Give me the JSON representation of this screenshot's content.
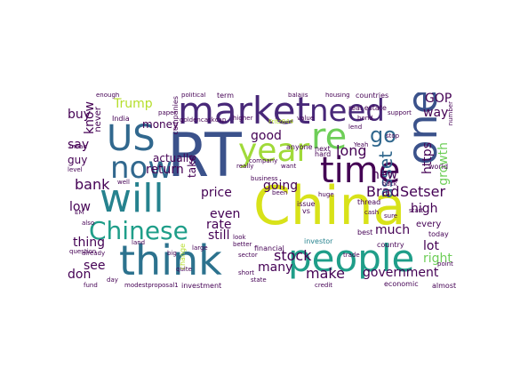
{
  "colors": {
    "purple_dark": "#440154",
    "purple": "#482878",
    "indigo": "#3b528b",
    "blue": "#31688e",
    "teal": "#26828e",
    "green_teal": "#1f9e89",
    "green": "#35b779",
    "light_green": "#6ece58",
    "yellow_green": "#b5de2b",
    "yellow": "#fde725"
  },
  "words": {
    "china": "China",
    "rt": "RT",
    "think": "think",
    "market": "market",
    "people": "people",
    "will": "will",
    "one": "one",
    "year": "year",
    "time": "time",
    "need": "need",
    "us": "US",
    "now": "now",
    "chinese": "Chinese",
    "re": "re",
    "go": "go",
    "trump": "Trump",
    "good": "good",
    "long": "long",
    "bank": "bank",
    "asset": "asset",
    "brad": "Brad",
    "setser": "Setser",
    "price": "price",
    "going": "going",
    "even": "even",
    "rate": "rate",
    "still": "still",
    "much": "much",
    "high": "high",
    "stock": "stock",
    "many": "many",
    "make": "make",
    "government": "government",
    "thing": "thing",
    "see": "see",
    "low": "low",
    "don": "don",
    "return": "return",
    "know": "know",
    "buy": "buy",
    "say": "say",
    "guy": "guy",
    "money": "money",
    "actually": "actually",
    "https": "https",
    "way": "way",
    "gop": "GOP",
    "growth": "growth",
    "new": "new",
    "lot": "lot",
    "right": "right",
    "every": "every",
    "investor": "investor",
    "country": "country",
    "issue": "issue",
    "economic": "economic",
    "financial": "financial",
    "investment": "investment",
    "modestproposal1": "modestproposal1",
    "goldencaskcap": "goldencaskcap",
    "companies": "companies",
    "india": "India",
    "never": "never",
    "real_estate": "real estate",
    "value": "value",
    "housing": "housing",
    "countries": "countries",
    "next": "next",
    "hard": "hard",
    "thread": "thread",
    "best": "best",
    "today": "today",
    "world": "world",
    "almost": "almost",
    "state": "state",
    "credit": "credit",
    "fund": "fund",
    "day": "day",
    "well": "well",
    "land": "land",
    "level": "level",
    "em": "EM",
    "mean": "mean",
    "take": "take",
    "business": "business",
    "company": "company",
    "really": "really",
    "huge": "huge",
    "vs": "vs",
    "look": "look",
    "anyone": "anyone",
    "higher": "higher",
    "term": "term",
    "want": "want",
    "political": "political",
    "balajis": "balajis",
    "question": "question",
    "large": "large",
    "change": "change",
    "sector": "sector",
    "been": "been",
    "better": "better",
    "enough": "enough",
    "fritz844": "Fritz844",
    "also": "also",
    "back": "back",
    "number": "number",
    "stop": "stop",
    "lend": "lend",
    "bond": "bond",
    "yeah": "Yeah",
    "big": "big",
    "quite": "quite",
    "short": "short",
    "cash": "cash",
    "sure": "sure",
    "start": "start",
    "support": "support",
    "already": "already",
    "point": "point",
    "paper": "paper",
    "trade": "trade"
  }
}
